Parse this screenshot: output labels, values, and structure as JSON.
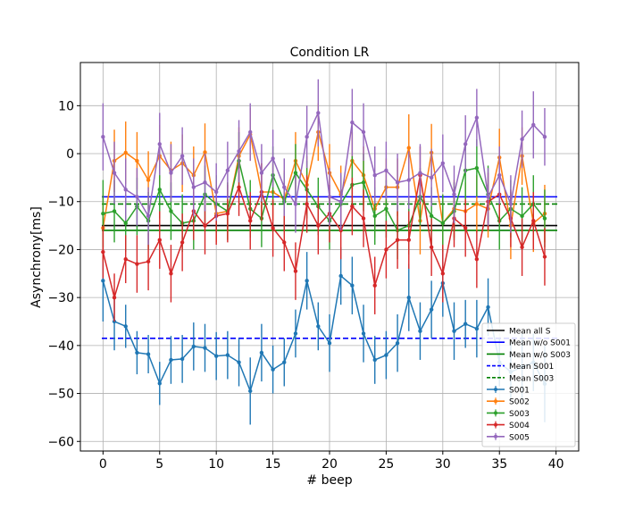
{
  "chart_data": {
    "type": "line",
    "title": "Condition LR",
    "xlabel": "# beep",
    "ylabel": "Asynchrony[ms]",
    "xlim": [
      -2,
      42
    ],
    "ylim": [
      -62,
      19
    ],
    "xticks": [
      0,
      5,
      10,
      15,
      20,
      25,
      30,
      35,
      40
    ],
    "yticks": [
      10,
      0,
      -10,
      -20,
      -30,
      -40,
      -50,
      -60
    ],
    "grid": true,
    "legend_position": "lower-right",
    "hlines": [
      {
        "name": "Mean all S",
        "y": -15,
        "color": "#000000",
        "style": "solid"
      },
      {
        "name": "Mean w/o S001",
        "y": -9,
        "color": "#0000ff",
        "style": "solid"
      },
      {
        "name": "Mean w/o S003",
        "y": -16,
        "color": "#008000",
        "style": "solid"
      },
      {
        "name": "Mean S001",
        "y": -38.5,
        "color": "#0000ff",
        "style": "dashed"
      },
      {
        "name": "Mean S003",
        "y": -10.5,
        "color": "#008000",
        "style": "dashed"
      }
    ],
    "x": [
      0,
      1,
      2,
      3,
      4,
      5,
      6,
      7,
      8,
      9,
      10,
      11,
      12,
      13,
      14,
      15,
      16,
      17,
      18,
      19,
      20,
      21,
      22,
      23,
      24,
      25,
      26,
      27,
      28,
      29,
      30,
      31,
      32,
      33,
      34,
      35,
      36,
      37,
      38,
      39
    ],
    "series": [
      {
        "name": "S001",
        "color": "#1f77b4",
        "values": [
          -26.5,
          -35,
          -36,
          -41.5,
          -41.8,
          -47.9,
          -43,
          -42.8,
          -40.2,
          -40.5,
          -42.2,
          -42,
          -43.5,
          -49.5,
          -41.5,
          -45,
          -43.5,
          -37.5,
          -26.5,
          -36,
          -39.5,
          -25.5,
          -27.5,
          -37.5,
          -43,
          -42,
          -39.5,
          -30,
          -37,
          -32.5,
          -27,
          -37,
          -35.5,
          -36.5,
          -32,
          -43.5,
          -45.5,
          -44.5,
          -43.5,
          -48
        ],
        "errors": [
          8.5,
          6,
          4.5,
          4.5,
          4,
          4.5,
          5,
          5,
          5,
          5,
          5,
          5,
          5,
          7,
          6,
          5,
          5,
          5,
          6,
          5,
          6,
          6,
          6,
          6,
          5,
          5,
          6,
          7,
          6,
          6,
          7,
          6,
          5,
          6,
          6,
          5,
          6,
          7,
          6,
          8
        ]
      },
      {
        "name": "S002",
        "color": "#ff7f0e",
        "values": [
          -15.5,
          -1.5,
          0.2,
          -1.5,
          -5.5,
          -0.5,
          -3.5,
          -2,
          -4.5,
          0.3,
          -12.5,
          -12,
          -0.5,
          4,
          -8,
          -8,
          -9.5,
          -1.5,
          -6.5,
          4.5,
          -4,
          -8.5,
          -1.5,
          -4.5,
          -11.5,
          -7,
          -7,
          1.2,
          -14,
          0.2,
          -14.5,
          -11.5,
          -12,
          -10.5,
          -11.5,
          -0.8,
          -15,
          -0.5,
          -14.5,
          -12.5
        ],
        "errors": [
          7,
          6.5,
          6.5,
          6,
          6,
          6.5,
          6,
          6,
          6,
          6,
          6,
          6,
          6,
          5.5,
          6,
          6,
          6,
          6,
          6,
          6,
          6,
          6,
          6,
          6,
          6,
          6,
          6,
          7,
          7,
          6,
          6,
          6,
          6,
          6,
          6,
          6,
          7,
          6,
          6,
          6
        ]
      },
      {
        "name": "S003",
        "color": "#2ca02c",
        "values": [
          -12.5,
          -12,
          -14.5,
          -11,
          -14,
          -7.5,
          -12,
          -14.5,
          -14,
          -8.5,
          -10.5,
          -12,
          -1.5,
          -11.5,
          -13.5,
          -4.5,
          -10,
          -4,
          -7.5,
          -11,
          -14,
          -10.5,
          -6.5,
          -6,
          -13,
          -11.5,
          -16,
          -15,
          -9,
          -13,
          -14.5,
          -12,
          -3.5,
          -3,
          -8.5,
          -14,
          -11.5,
          -13,
          -10.5,
          -13.5
        ],
        "errors": [
          7,
          6.5,
          6,
          6,
          6,
          6,
          6,
          6,
          6,
          6,
          6,
          6,
          6,
          6,
          6,
          6,
          6,
          6,
          6,
          6,
          6,
          6,
          6,
          6,
          6,
          6,
          6,
          6,
          6,
          6,
          6,
          6,
          6,
          6,
          6,
          6,
          6,
          6,
          6,
          6
        ]
      },
      {
        "name": "S004",
        "color": "#d62728",
        "values": [
          -20.5,
          -30,
          -22,
          -23,
          -22.5,
          -18,
          -25,
          -18.5,
          -12,
          -15,
          -13,
          -12.5,
          -7,
          -14,
          -8,
          -15.5,
          -18.5,
          -24.5,
          -10.5,
          -15,
          -12.5,
          -16,
          -11,
          -13.5,
          -27.5,
          -20,
          -18,
          -18,
          -4.5,
          -19.5,
          -25,
          -13.5,
          -15.5,
          -22,
          -10,
          -8.5,
          -13.5,
          -19.5,
          -14,
          -21.5
        ],
        "errors": [
          5.5,
          5,
          5,
          6,
          6,
          6,
          6,
          6,
          6,
          6,
          6,
          6,
          6,
          6,
          6,
          6,
          6,
          6,
          6,
          6,
          6,
          6,
          6,
          6,
          6,
          6,
          6,
          6,
          6,
          6,
          6,
          6,
          6,
          6,
          6,
          6,
          6,
          6,
          6,
          6
        ]
      },
      {
        "name": "S005",
        "color": "#9467bd",
        "values": [
          3.5,
          -4,
          -7.5,
          -9,
          -13,
          2,
          -4,
          -0.5,
          -7,
          -6,
          -8,
          -3.5,
          0.5,
          4.5,
          -4,
          -1,
          -7,
          -10.5,
          3.5,
          8.5,
          -9,
          -10,
          6.5,
          4.5,
          -4.5,
          -3.5,
          -6,
          -5.5,
          -4,
          -5,
          -2,
          -8.5,
          2,
          7.5,
          -9,
          -4.5,
          -10.5,
          3,
          6,
          3.5
        ],
        "errors": [
          7,
          6.5,
          6.5,
          6,
          6,
          6.5,
          6,
          6,
          6,
          6,
          6,
          6,
          6.5,
          6,
          6,
          6,
          6,
          6,
          6.5,
          7,
          6,
          6,
          7,
          6,
          6,
          6,
          6,
          6,
          6,
          6,
          6,
          6,
          6,
          6,
          6,
          6,
          6,
          6,
          7,
          6
        ]
      }
    ]
  }
}
